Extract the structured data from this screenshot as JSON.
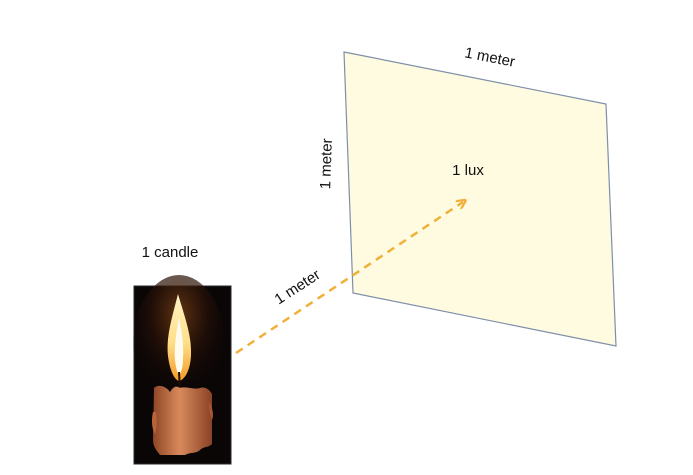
{
  "labels": {
    "candle": "1 candle",
    "distance": "1 meter",
    "plane_top": "1 meter",
    "plane_side": "1 meter",
    "illuminance": "1 lux"
  },
  "colors": {
    "plane_fill": "#FEFBE0",
    "plane_stroke": "#7F8FA9",
    "arrow": "#F0B03A",
    "candle_background": "#0B0606",
    "candle_body": "#C9744A",
    "flame_core": "#FFF6D8",
    "flame_outer": "#F5A62A"
  },
  "icons": {
    "light_source": "candle-icon"
  }
}
